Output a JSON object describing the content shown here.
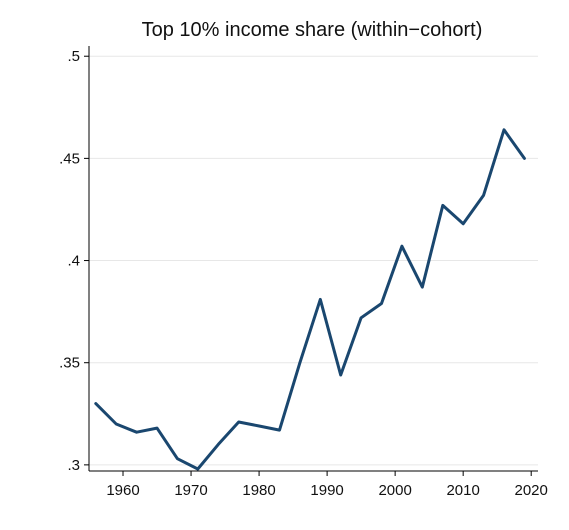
{
  "chart_data": {
    "type": "line",
    "title": "Top 10% income share (within−cohort)",
    "xlabel": "",
    "ylabel": "",
    "xlim": [
      1955,
      2021
    ],
    "ylim": [
      0.297,
      0.505
    ],
    "x_ticks": [
      {
        "value": 1960,
        "label": "1960"
      },
      {
        "value": 1970,
        "label": "1970"
      },
      {
        "value": 1980,
        "label": "1980"
      },
      {
        "value": 1990,
        "label": "1990"
      },
      {
        "value": 2000,
        "label": "2000"
      },
      {
        "value": 2010,
        "label": "2010"
      },
      {
        "value": 2020,
        "label": "2020"
      }
    ],
    "y_ticks": [
      {
        "value": 0.3,
        "label": ".3"
      },
      {
        "value": 0.35,
        "label": ".35"
      },
      {
        "value": 0.4,
        "label": ".4"
      },
      {
        "value": 0.45,
        "label": ".45"
      },
      {
        "value": 0.5,
        "label": ".5"
      }
    ],
    "grid": true,
    "line_color": "#1a476f",
    "series": [
      {
        "x": [
          1956,
          1959,
          1962,
          1965,
          1968,
          1971,
          1974,
          1977,
          1980,
          1983,
          1986,
          1989,
          1992,
          1995,
          1998,
          2001,
          2004,
          2007,
          2010,
          2013,
          2016,
          2019
        ],
        "y": [
          0.33,
          0.32,
          0.316,
          0.318,
          0.303,
          0.298,
          0.31,
          0.321,
          0.319,
          0.317,
          0.35,
          0.381,
          0.344,
          0.372,
          0.379,
          0.407,
          0.387,
          0.427,
          0.418,
          0.432,
          0.464,
          0.45
        ]
      }
    ]
  }
}
